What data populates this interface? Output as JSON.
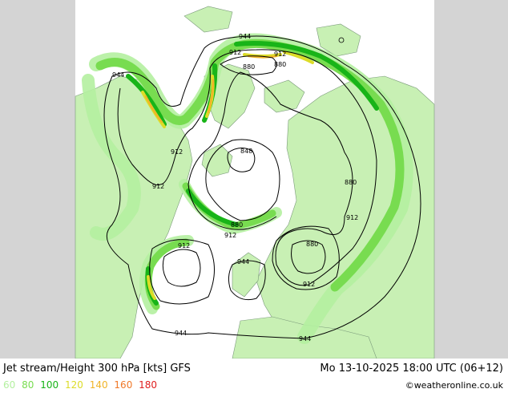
{
  "footer": {
    "title": "Jet stream/Height 300 hPa [kts] GFS",
    "time": "Mo 13-10-2025 18:00 UTC (06+12)",
    "credit": "©weatheronline.co.uk"
  },
  "legend": [
    {
      "label": "60",
      "color": "#b4f0a0"
    },
    {
      "label": "80",
      "color": "#78dc50"
    },
    {
      "label": "100",
      "color": "#18b418"
    },
    {
      "label": "120",
      "color": "#dcdc28"
    },
    {
      "label": "140",
      "color": "#f0b428"
    },
    {
      "label": "160",
      "color": "#f07828"
    },
    {
      "label": "180",
      "color": "#e01e1e"
    }
  ],
  "contour_labels": [
    "944",
    "912",
    "912",
    "880",
    "880",
    "944",
    "912",
    "912",
    "848",
    "880",
    "912",
    "880",
    "912",
    "912",
    "880",
    "912",
    "944",
    "944",
    "944"
  ],
  "colors": {
    "land": "#c8f0b4",
    "sea": "#ffffff",
    "offmap": "#d4d4d4",
    "jet_60": "#b4f0a0",
    "jet_80": "#78dc50",
    "jet_100": "#18b418",
    "jet_120": "#dcdc28",
    "jet_140": "#f0b428"
  }
}
